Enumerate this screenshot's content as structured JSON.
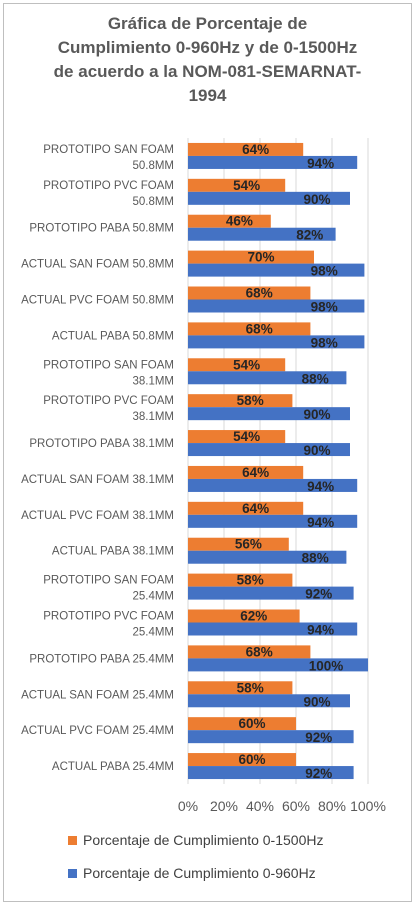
{
  "chart_data": {
    "type": "bar",
    "orientation": "horizontal",
    "title": "Gráfica de Porcentaje de\nCumplimiento 0-960Hz y de 0-1500Hz\nde acuerdo a la NOM-081-SEMARNAT-\n1994",
    "xlabel": "",
    "ylabel": "",
    "xlim": [
      0,
      100
    ],
    "x_ticks": [
      "0%",
      "20%",
      "40%",
      "60%",
      "80%",
      "100%"
    ],
    "grid": "vertical",
    "legend_position": "bottom",
    "categories": [
      [
        "PROTOTIPO SAN FOAM",
        "50.8MM"
      ],
      [
        "PROTOTIPO PVC FOAM",
        "50.8MM"
      ],
      [
        "PROTOTIPO PABA  50.8MM"
      ],
      [
        "ACTUAL SAN FOAM 50.8MM"
      ],
      [
        "ACTUAL PVC FOAM 50.8MM"
      ],
      [
        "ACTUAL PABA  50.8MM"
      ],
      [
        "PROTOTIPO SAN FOAM",
        "38.1MM"
      ],
      [
        "PROTOTIPO PVC FOAM",
        "38.1MM"
      ],
      [
        "PROTOTIPO PABA  38.1MM"
      ],
      [
        "ACTUAL SAN FOAM 38.1MM"
      ],
      [
        "ACTUAL PVC FOAM 38.1MM"
      ],
      [
        "ACTUAL PABA  38.1MM"
      ],
      [
        "PROTOTIPO SAN FOAM",
        "25.4MM"
      ],
      [
        "PROTOTIPO PVC FOAM",
        "25.4MM"
      ],
      [
        "PROTOTIPO PABA  25.4MM"
      ],
      [
        "ACTUAL SAN FOAM 25.4MM"
      ],
      [
        "ACTUAL PVC FOAM 25.4MM"
      ],
      [
        "ACTUAL PABA  25.4MM"
      ]
    ],
    "series": [
      {
        "name": "Porcentaje de Cumplimiento 0-1500Hz",
        "color": "#ED7D31",
        "values": [
          64,
          54,
          46,
          70,
          68,
          68,
          54,
          58,
          54,
          64,
          64,
          56,
          58,
          62,
          68,
          58,
          60,
          60
        ],
        "labels": [
          "64%",
          "54%",
          "46%",
          "70%",
          "68%",
          "68%",
          "54%",
          "58%",
          "54%",
          "64%",
          "64%",
          "56%",
          "58%",
          "62%",
          "68%",
          "58%",
          "60%",
          "60%"
        ]
      },
      {
        "name": "Porcentaje de Cumplimiento 0-960Hz",
        "color": "#4472C4",
        "values": [
          94,
          90,
          82,
          98,
          98,
          98,
          88,
          90,
          90,
          94,
          94,
          88,
          92,
          94,
          100,
          90,
          92,
          92
        ],
        "labels": [
          "94%",
          "90%",
          "82%",
          "98%",
          "98%",
          "98%",
          "88%",
          "90%",
          "90%",
          "94%",
          "94%",
          "88%",
          "92%",
          "94%",
          "100%",
          "90%",
          "92%",
          "92%"
        ]
      }
    ]
  }
}
